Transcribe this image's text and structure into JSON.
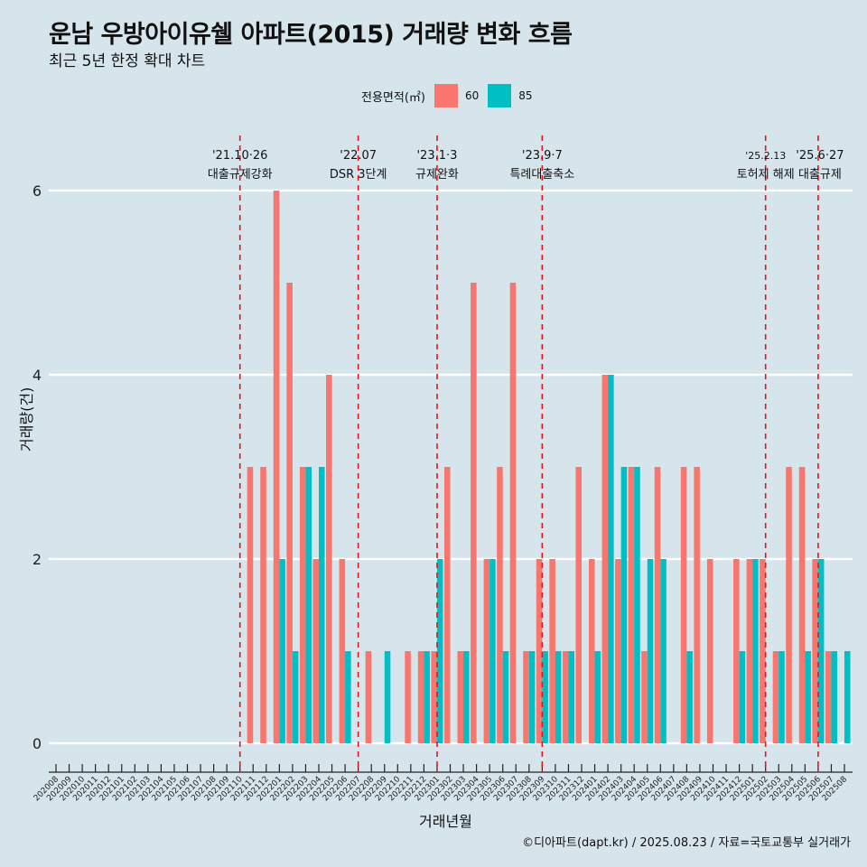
{
  "title": "운남 우방아이유쉘 아파트(2015) 거래량 변화 흐름",
  "subtitle": "최근 5년 한정 확대 차트",
  "legend": {
    "title": "전용면적(㎡)",
    "items": [
      {
        "label": "60",
        "color": "#f8766d"
      },
      {
        "label": "85",
        "color": "#00bfc4"
      }
    ]
  },
  "caption": "©디아파트(dapt.kr) / 2025.08.23 / 자료=국토교통부 실거래가",
  "chart_data": {
    "type": "bar",
    "title": "운남 우방아이유쉘 아파트(2015) 거래량 변화 흐름",
    "xlabel": "거래년월",
    "ylabel": "거래량(건)",
    "ylim": [
      0,
      6
    ],
    "yticks": [
      0,
      2,
      4,
      6
    ],
    "categories": [
      "202008",
      "202009",
      "202010",
      "202011",
      "202012",
      "202101",
      "202102",
      "202103",
      "202104",
      "202105",
      "202106",
      "202107",
      "202108",
      "202109",
      "202110",
      "202111",
      "202112",
      "202201",
      "202202",
      "202203",
      "202204",
      "202205",
      "202206",
      "202207",
      "202208",
      "202209",
      "202210",
      "202211",
      "202212",
      "202301",
      "202302",
      "202303",
      "202304",
      "202305",
      "202306",
      "202307",
      "202308",
      "202309",
      "202310",
      "202311",
      "202312",
      "202401",
      "202402",
      "202403",
      "202404",
      "202405",
      "202406",
      "202407",
      "202408",
      "202409",
      "202410",
      "202411",
      "202412",
      "202501",
      "202502",
      "202503",
      "202504",
      "202505",
      "202506",
      "202507",
      "202508"
    ],
    "series": [
      {
        "name": "60",
        "color": "#f8766d",
        "values": [
          0,
          0,
          0,
          0,
          0,
          0,
          0,
          0,
          0,
          0,
          0,
          0,
          0,
          0,
          0,
          3,
          3,
          6,
          5,
          3,
          2,
          4,
          2,
          0,
          1,
          0,
          0,
          1,
          1,
          1,
          3,
          1,
          5,
          2,
          3,
          5,
          1,
          2,
          2,
          1,
          3,
          2,
          4,
          2,
          3,
          1,
          3,
          0,
          3,
          3,
          2,
          0,
          2,
          2,
          2,
          1,
          3,
          3,
          2,
          1,
          0
        ]
      },
      {
        "name": "85",
        "color": "#00bfc4",
        "values": [
          0,
          0,
          0,
          0,
          0,
          0,
          0,
          0,
          0,
          0,
          0,
          0,
          0,
          0,
          0,
          0,
          0,
          2,
          1,
          3,
          3,
          0,
          1,
          0,
          0,
          1,
          0,
          0,
          1,
          2,
          0,
          1,
          0,
          2,
          1,
          0,
          1,
          1,
          1,
          1,
          0,
          1,
          4,
          3,
          3,
          2,
          2,
          0,
          1,
          0,
          0,
          0,
          1,
          2,
          0,
          1,
          0,
          1,
          2,
          1,
          1
        ]
      }
    ],
    "annotations": [
      {
        "date": "'21.10·26",
        "label": "대출규제강화",
        "x": "202110"
      },
      {
        "date": "'22.07",
        "label": "DSR 3단계",
        "x": "202207"
      },
      {
        "date": "'23.1·3",
        "label": "규제완화",
        "x": "202301"
      },
      {
        "date": "'23.9·7",
        "label": "특례대출축소",
        "x": "202309"
      },
      {
        "date": "'25.2.13",
        "label": "토허제 해제",
        "x": "202502"
      },
      {
        "date": "'25.6·27",
        "label": "대출규제",
        "x": "202506"
      }
    ]
  }
}
